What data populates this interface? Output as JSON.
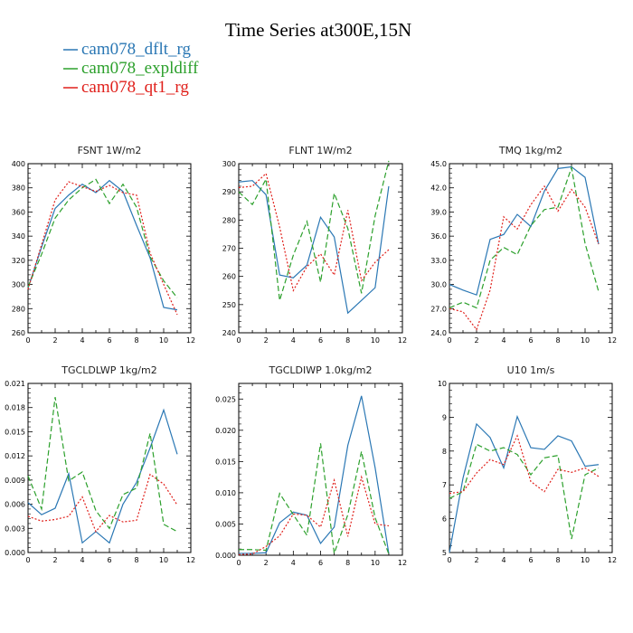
{
  "title": "Time Series at300E,15N",
  "legend": [
    {
      "label": "cam078_dflt_rg",
      "color": "#2a77b4",
      "dash": "none"
    },
    {
      "label": "cam078_expldiff",
      "color": "#2ca02c",
      "dash": "6,3"
    },
    {
      "label": "cam078_qt1_rg",
      "color": "#e0201b",
      "dash": "2,2"
    }
  ],
  "chart_data": [
    {
      "type": "line",
      "title": "FSNT   1W/m2",
      "x": [
        0,
        1,
        2,
        3,
        4,
        5,
        6,
        7,
        8,
        9,
        10,
        11
      ],
      "xlim": [
        0,
        12
      ],
      "xticks": [
        "0",
        "2",
        "4",
        "6",
        "8",
        "10",
        "12"
      ],
      "ylim": [
        260,
        400
      ],
      "yticks": [
        "260",
        "280",
        "300",
        "320",
        "340",
        "360",
        "380",
        "400"
      ],
      "series": [
        {
          "name": "cam078_dflt_rg",
          "values": [
            297,
            331,
            363,
            374,
            383,
            376,
            386,
            377,
            349,
            322,
            281,
            279
          ]
        },
        {
          "name": "cam078_expldiff",
          "values": [
            298,
            325,
            355,
            370,
            380,
            387,
            367,
            383,
            364,
            323,
            303,
            289
          ]
        },
        {
          "name": "cam078_qt1_rg",
          "values": [
            296,
            333,
            370,
            385,
            381,
            377,
            382,
            376,
            374,
            326,
            300,
            275
          ]
        }
      ]
    },
    {
      "type": "line",
      "title": "FLNT   1W/m2",
      "x": [
        0,
        1,
        2,
        3,
        4,
        5,
        6,
        7,
        8,
        9,
        10,
        11
      ],
      "xlim": [
        0,
        12
      ],
      "xticks": [
        "0",
        "2",
        "4",
        "6",
        "8",
        "10",
        "12"
      ],
      "ylim": [
        240,
        300
      ],
      "yticks": [
        "240",
        "250",
        "260",
        "270",
        "280",
        "290",
        "300"
      ],
      "series": [
        {
          "name": "cam078_dflt_rg",
          "values": [
            293.5,
            294,
            289,
            260.5,
            259.5,
            264,
            281,
            274,
            247,
            251.5,
            256,
            292
          ]
        },
        {
          "name": "cam078_expldiff",
          "values": [
            290,
            285.5,
            294.5,
            251.5,
            267.5,
            279.5,
            258,
            289.5,
            277,
            254,
            281.5,
            301
          ]
        },
        {
          "name": "cam078_qt1_rg",
          "values": [
            291.5,
            292,
            296.5,
            277.5,
            255,
            263.5,
            268,
            260.5,
            283.5,
            258.5,
            265,
            269.5
          ]
        }
      ]
    },
    {
      "type": "line",
      "title": "TMQ   1kg/m2",
      "x": [
        0,
        1,
        2,
        3,
        4,
        5,
        6,
        7,
        8,
        9,
        10,
        11
      ],
      "xlim": [
        0,
        12
      ],
      "xticks": [
        "0",
        "2",
        "4",
        "6",
        "8",
        "10",
        "12"
      ],
      "ylim": [
        24.0,
        45.0
      ],
      "yticks": [
        "24.0",
        "27.0",
        "30.0",
        "33.0",
        "36.0",
        "39.0",
        "42.0",
        "45.0"
      ],
      "series": [
        {
          "name": "cam078_dflt_rg",
          "values": [
            30.0,
            29.3,
            28.7,
            35.6,
            36.2,
            38.7,
            37.2,
            41.6,
            44.4,
            44.6,
            43.3,
            35.0
          ]
        },
        {
          "name": "cam078_expldiff",
          "values": [
            27.1,
            27.8,
            27.1,
            33.0,
            34.6,
            33.7,
            37.3,
            39.3,
            39.6,
            44.5,
            35.1,
            29.1
          ]
        },
        {
          "name": "cam078_qt1_rg",
          "values": [
            27.0,
            26.6,
            24.4,
            29.3,
            38.4,
            36.9,
            39.9,
            42.2,
            39.1,
            41.8,
            39.6,
            35.0
          ]
        }
      ]
    },
    {
      "type": "line",
      "title": "TGCLDLWP   1kg/m2",
      "x": [
        0,
        1,
        2,
        3,
        4,
        5,
        6,
        7,
        8,
        9,
        10,
        11
      ],
      "xlim": [
        0,
        12
      ],
      "xticks": [
        "0",
        "2",
        "4",
        "6",
        "8",
        "10",
        "12"
      ],
      "ylim": [
        0.0,
        0.021
      ],
      "yticks": [
        "0.000",
        "0.003",
        "0.006",
        "0.009",
        "0.012",
        "0.015",
        "0.018",
        "0.021"
      ],
      "series": [
        {
          "name": "cam078_dflt_rg",
          "values": [
            0.0062,
            0.0047,
            0.0055,
            0.0098,
            0.0012,
            0.0026,
            0.0012,
            0.006,
            0.0087,
            0.013,
            0.0177,
            0.0122
          ]
        },
        {
          "name": "cam078_expldiff",
          "values": [
            0.0095,
            0.0054,
            0.0193,
            0.0089,
            0.01,
            0.0052,
            0.003,
            0.0072,
            0.008,
            0.0148,
            0.0035,
            0.0026
          ]
        },
        {
          "name": "cam078_qt1_rg",
          "values": [
            0.0045,
            0.0039,
            0.0041,
            0.0045,
            0.0069,
            0.0026,
            0.0046,
            0.0038,
            0.004,
            0.0097,
            0.0085,
            0.0059
          ]
        }
      ]
    },
    {
      "type": "line",
      "title": "TGCLDIWP   1.0kg/m2",
      "x": [
        0,
        1,
        2,
        3,
        4,
        5,
        6,
        7,
        8,
        9,
        10,
        11
      ],
      "xlim": [
        0,
        12
      ],
      "xticks": [
        "0",
        "2",
        "4",
        "6",
        "8",
        "10",
        "12"
      ],
      "ylim": [
        0.0,
        0.0275
      ],
      "yticks": [
        "0.000",
        "0.005",
        "0.010",
        "0.015",
        "0.020",
        "0.025"
      ],
      "series": [
        {
          "name": "cam078_dflt_rg",
          "values": [
            0.0003,
            0.0003,
            0.0004,
            0.0052,
            0.0069,
            0.0064,
            0.0019,
            0.0045,
            0.0176,
            0.0255,
            0.014,
            0.0003
          ]
        },
        {
          "name": "cam078_expldiff",
          "values": [
            0.0009,
            0.0009,
            0.0008,
            0.0099,
            0.0065,
            0.0032,
            0.0179,
            0.0003,
            0.0065,
            0.0166,
            0.006,
            0.0002
          ]
        },
        {
          "name": "cam078_qt1_rg",
          "values": [
            0.0001,
            0.0002,
            0.0014,
            0.0031,
            0.0066,
            0.0064,
            0.0045,
            0.012,
            0.003,
            0.0125,
            0.005,
            0.0047
          ]
        }
      ]
    },
    {
      "type": "line",
      "title": "U10   1m/s",
      "x": [
        0,
        1,
        2,
        3,
        4,
        5,
        6,
        7,
        8,
        9,
        10,
        11
      ],
      "xlim": [
        0,
        12
      ],
      "xticks": [
        "0",
        "2",
        "4",
        "6",
        "8",
        "10",
        "12"
      ],
      "ylim": [
        5,
        10
      ],
      "yticks": [
        "5",
        "6",
        "7",
        "8",
        "9",
        "10"
      ],
      "series": [
        {
          "name": "cam078_dflt_rg",
          "values": [
            5.0,
            7.2,
            8.8,
            8.4,
            7.5,
            9.02,
            8.1,
            8.05,
            8.45,
            8.3,
            7.55,
            7.6
          ]
        },
        {
          "name": "cam078_expldiff",
          "values": [
            6.6,
            6.8,
            8.2,
            8.0,
            8.1,
            7.9,
            7.3,
            7.8,
            7.87,
            5.4,
            7.3,
            7.5
          ]
        },
        {
          "name": "cam078_qt1_rg",
          "values": [
            6.75,
            6.8,
            7.35,
            7.75,
            7.6,
            8.45,
            7.1,
            6.8,
            7.46,
            7.37,
            7.5,
            7.25
          ]
        }
      ]
    }
  ]
}
